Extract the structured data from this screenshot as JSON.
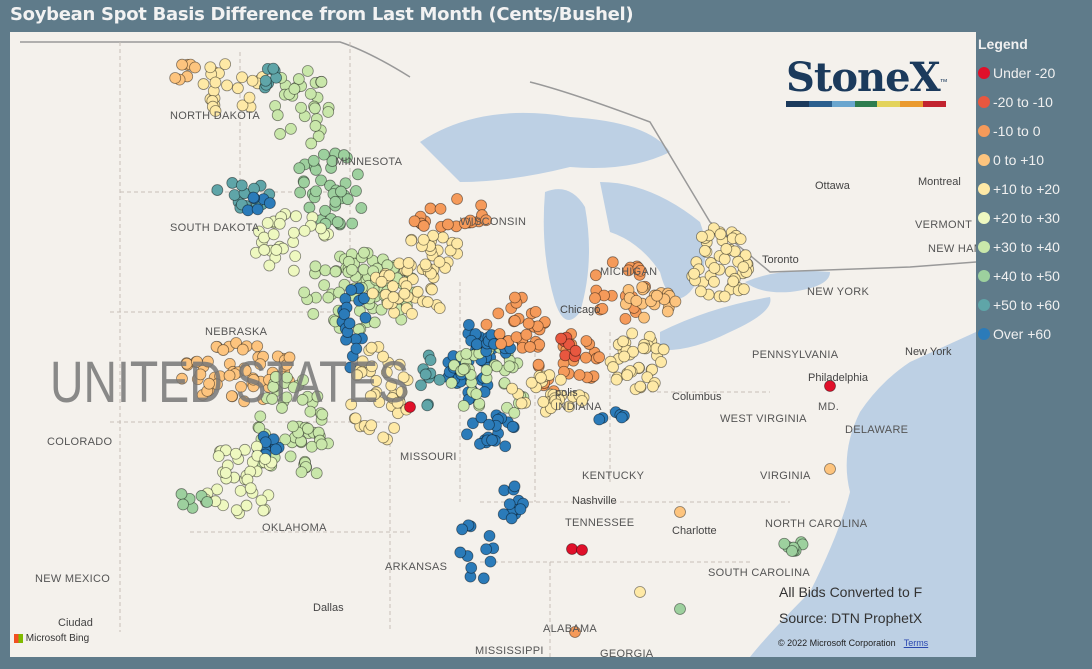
{
  "title": "Soybean Spot Basis Difference from Last Month (Cents/Bushel)",
  "legend": {
    "title": "Legend",
    "items": [
      {
        "label": "Under -20",
        "color": "#e0102a"
      },
      {
        "label": "-20 to -10",
        "color": "#e8573f"
      },
      {
        "label": "-10 to 0",
        "color": "#f59a5a"
      },
      {
        "label": "0 to +10",
        "color": "#fdc47e"
      },
      {
        "label": "+10 to +20",
        "color": "#fee9a6"
      },
      {
        "label": "+20 to +30",
        "color": "#eef8c0"
      },
      {
        "label": "+30 to +40",
        "color": "#c9e7aa"
      },
      {
        "label": "+40 to +50",
        "color": "#9dd09e"
      },
      {
        "label": "+50 to +60",
        "color": "#5fa5a8"
      },
      {
        "label": "Over +60",
        "color": "#2b7bb9"
      }
    ]
  },
  "logo": {
    "text": "StoneX",
    "tm": "™",
    "colors": [
      "#1b3a5c",
      "#2b5f8e",
      "#6aa6cf",
      "#2e7d4f",
      "#e3d35b",
      "#ea9a2e",
      "#c2242f"
    ]
  },
  "map": {
    "country_label": "UNITED STATES",
    "states": [
      "NORTH DAKOTA",
      "MINNESOTA",
      "SOUTH DAKOTA",
      "WISCONSIN",
      "MICHIGAN",
      "NEBRASKA",
      "COLORADO",
      "MISSOURI",
      "INDIANA",
      "KENTUCKY",
      "TENNESSEE",
      "OKLAHOMA",
      "ARKANSAS",
      "NEW MEXICO",
      "ALABAMA",
      "WEST VIRGINIA",
      "PENNSYLVANIA",
      "NEW YORK",
      "VERMONT",
      "NEW HAMPSHIRE",
      "DELAWARE",
      "NORTH CAROLINA",
      "SOUTH CAROLINA",
      "MD.",
      "MISSISSIPPI",
      "GEORGIA",
      "VIRGINIA"
    ],
    "cities": [
      "Chicago",
      "Ottawa",
      "Montreal",
      "Toronto",
      "Columbus",
      "Philadelphia",
      "New York",
      "Nashville",
      "Charlotte",
      "Dallas",
      "polis",
      "Ciudad"
    ],
    "attribution": "Microsoft Bing",
    "copyright": "© 2022 Microsoft Corporation",
    "terms": "Terms"
  },
  "notes": {
    "line1": "All Bids Converted to F",
    "line2": "Source: DTN ProphetX"
  }
}
